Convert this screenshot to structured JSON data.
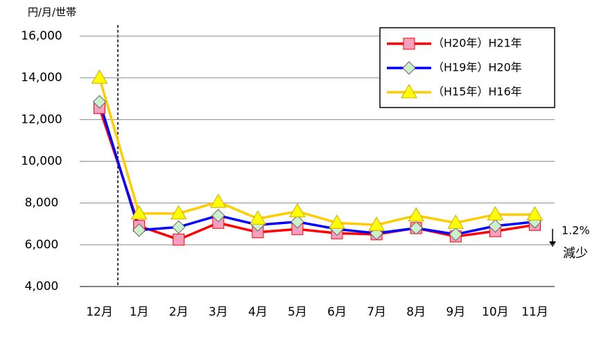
{
  "chart_data": {
    "type": "line",
    "y_unit_label": "円/月/世帯",
    "categories": [
      "12月",
      "1月",
      "2月",
      "3月",
      "4月",
      "5月",
      "6月",
      "7月",
      "8月",
      "9月",
      "10月",
      "11月"
    ],
    "series": [
      {
        "name": "（H20年）H21年",
        "color": "#ff0000",
        "marker": "square",
        "marker_fill": "#f4a0c0",
        "values": [
          12550,
          6900,
          6250,
          7050,
          6600,
          6750,
          6550,
          6500,
          6800,
          6400,
          6650,
          6950
        ]
      },
      {
        "name": "（H19年）H20年",
        "color": "#0000ff",
        "marker": "diamond",
        "marker_fill": "#ccf0cc",
        "values": [
          12850,
          6700,
          6850,
          7400,
          6950,
          7100,
          6750,
          6550,
          6800,
          6500,
          6900,
          7100
        ]
      },
      {
        "name": "（H15年）H16年",
        "color": "#ffcc00",
        "marker": "triangle",
        "marker_fill": "#ffff00",
        "values": [
          14000,
          7500,
          7500,
          8050,
          7250,
          7600,
          7050,
          6950,
          7400,
          7050,
          7450,
          7450
        ]
      }
    ],
    "ylim": [
      4000,
      16000
    ],
    "yticks": [
      {
        "value": 4000,
        "label": "4,000"
      },
      {
        "value": 6000,
        "label": "6,000"
      },
      {
        "value": 8000,
        "label": "8,000"
      },
      {
        "value": 10000,
        "label": "10,000"
      },
      {
        "value": 12000,
        "label": "12,000"
      },
      {
        "value": 14000,
        "label": "14,000"
      },
      {
        "value": 16000,
        "label": "16,000"
      }
    ],
    "grid": true,
    "legend": "top-right",
    "annotations": [
      "1.2%",
      "減少"
    ]
  }
}
